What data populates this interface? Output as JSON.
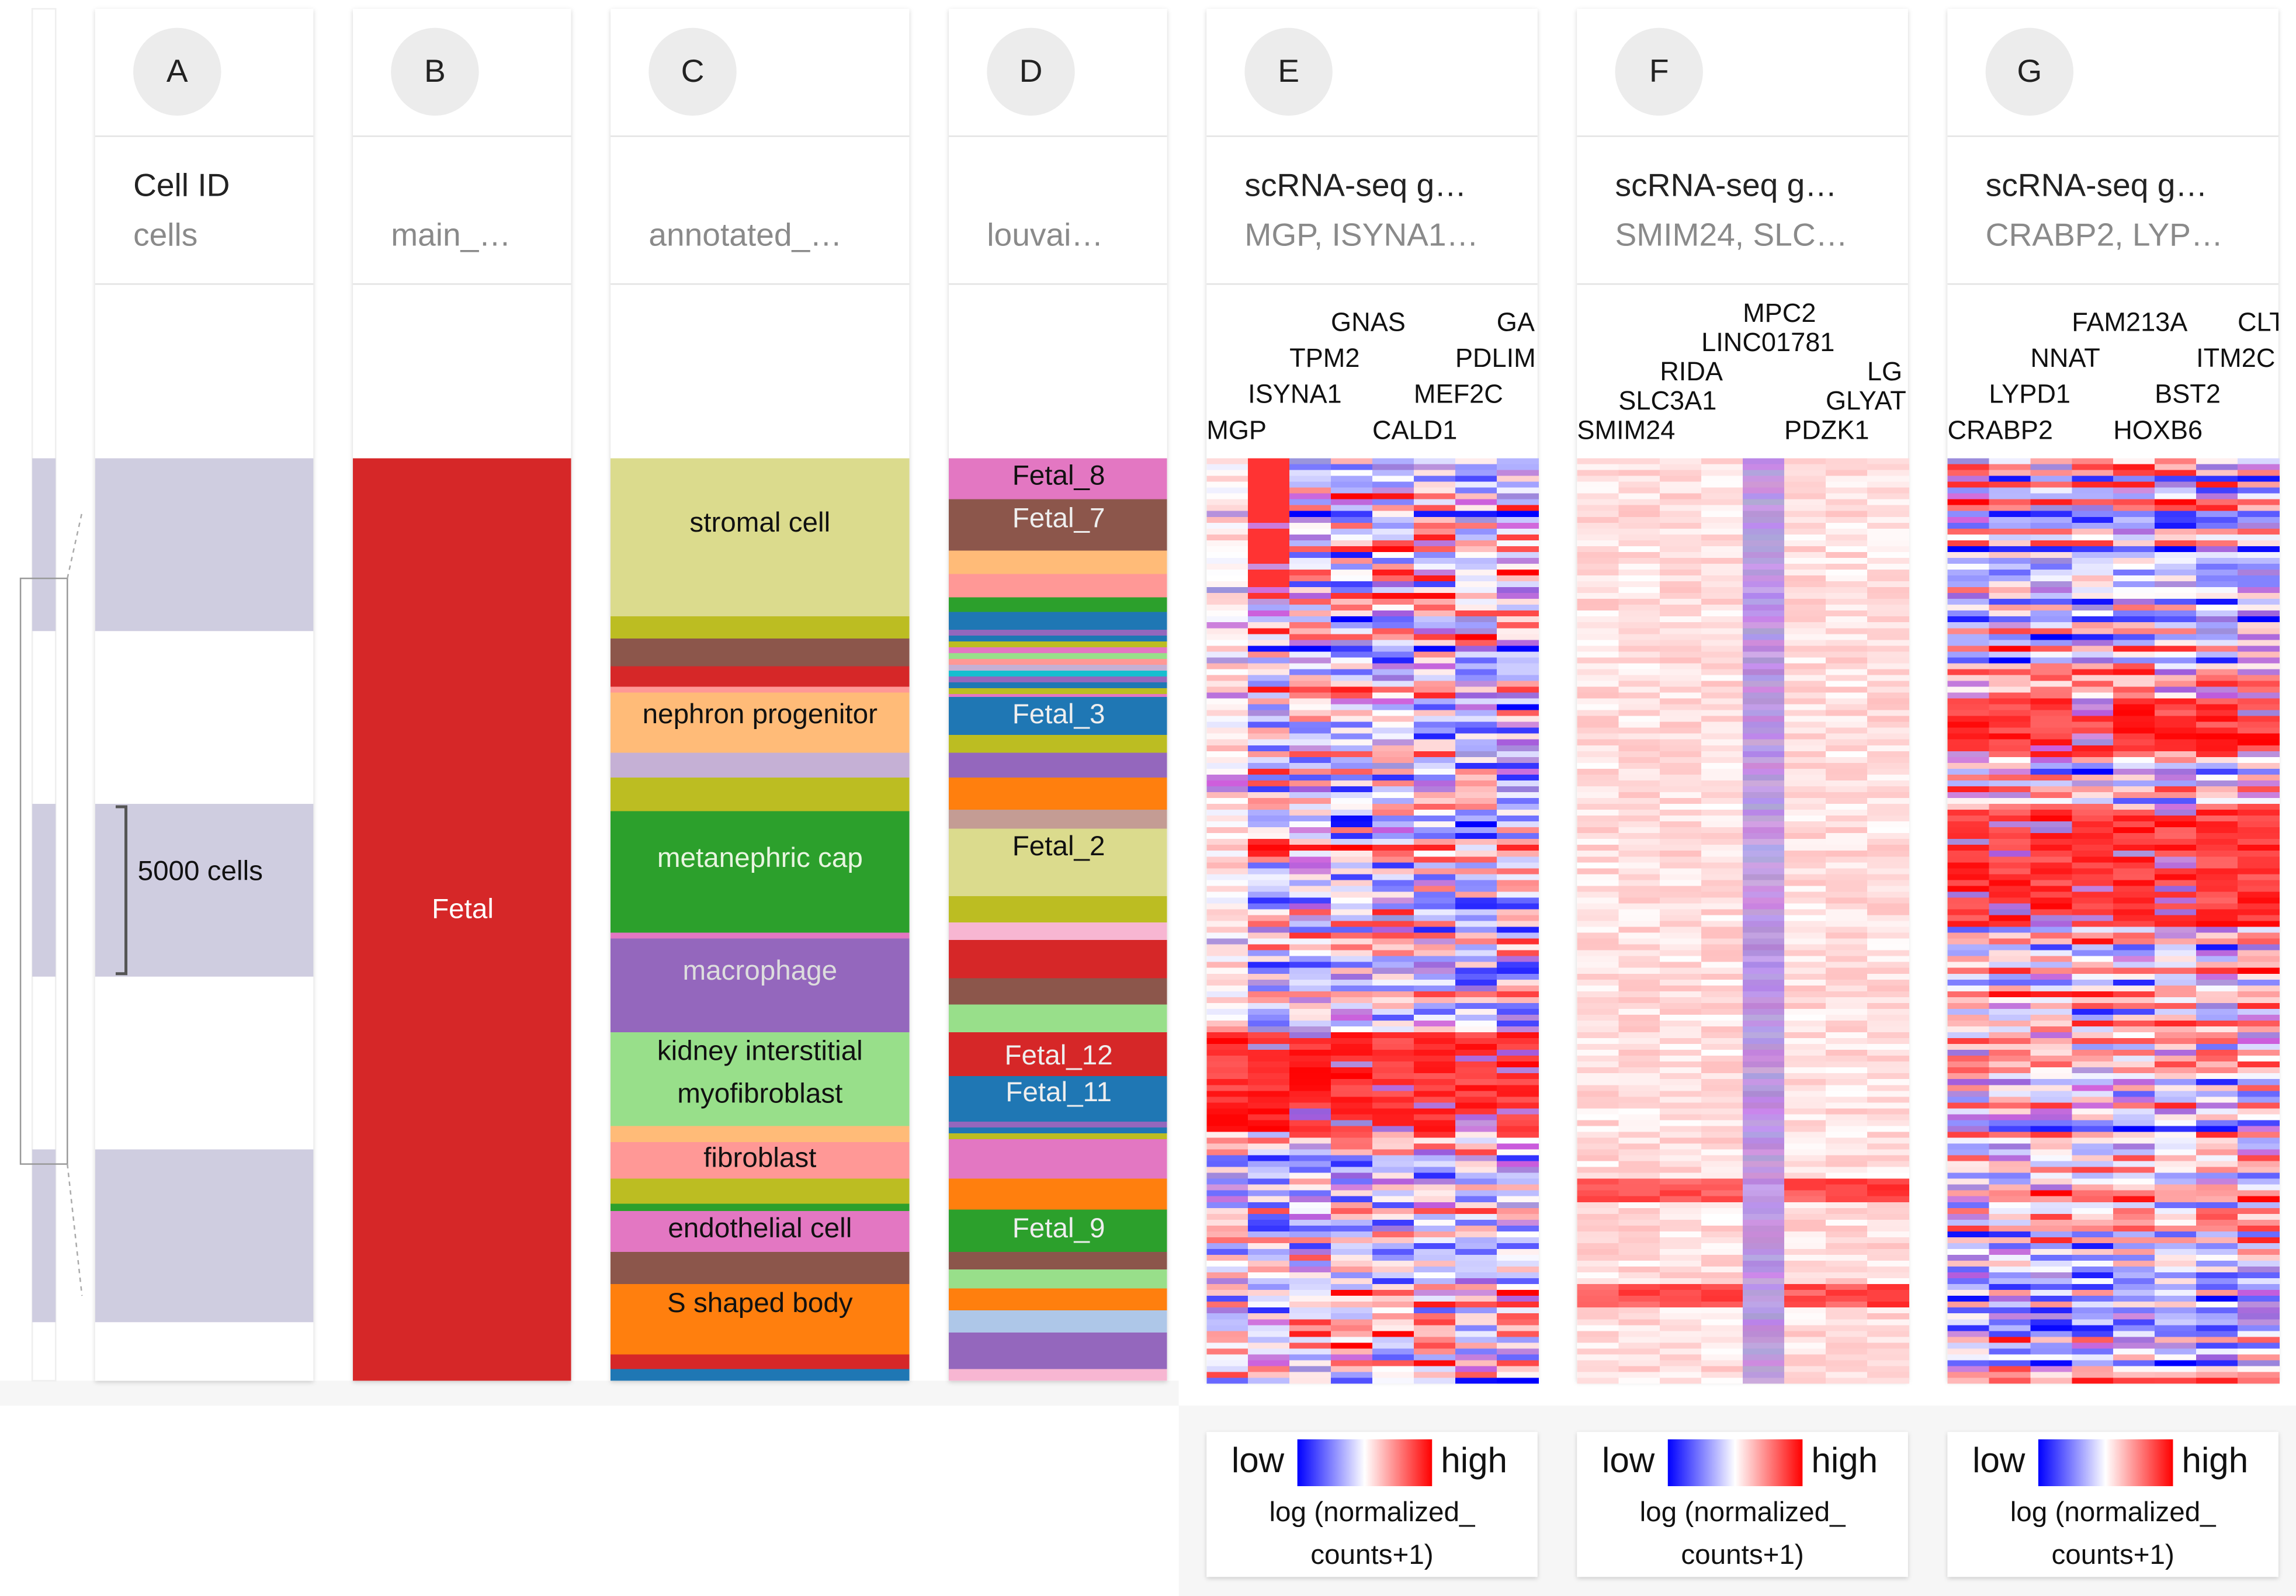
{
  "columns": [
    {
      "letter": "A",
      "title": "Cell ID",
      "subtitle": "cells",
      "labels": [
        "5000 cells"
      ]
    },
    {
      "letter": "B",
      "subtitle": "main_…",
      "labels": [
        "Fetal"
      ]
    },
    {
      "letter": "C",
      "subtitle": "annotated_…",
      "labels": [
        "stromal cell",
        "nephron progenitor",
        "metanephric cap",
        "macrophage",
        "kidney interstitial",
        "myofibroblast",
        "fibroblast",
        "endothelial cell",
        "S shaped body"
      ]
    },
    {
      "letter": "D",
      "subtitle": "louvai…",
      "labels": [
        "Fetal_8",
        "Fetal_7",
        "Fetal_3",
        "Fetal_2",
        "Fetal_12",
        "Fetal_11",
        "Fetal_9"
      ]
    },
    {
      "letter": "E",
      "title": "scRNA-seq g…",
      "subtitle": "MGP, ISYNA1…",
      "genes": [
        "MGP",
        "ISYNA1",
        "TPM2",
        "GNAS",
        "CALD1",
        "MEF2C",
        "PDLIM",
        "GA"
      ]
    },
    {
      "letter": "F",
      "title": "scRNA-seq g…",
      "subtitle": "SMIM24, SLC…",
      "genes": [
        "SMIM24",
        "SLC3A1",
        "RIDA",
        "LINC01781",
        "MPC2",
        "PDZK1",
        "GLYAT",
        "LG"
      ]
    },
    {
      "letter": "G",
      "title": "scRNA-seq g…",
      "subtitle": "CRABP2, LYP…",
      "genes": [
        "CRABP2",
        "LYPD1",
        "NNAT",
        "FAM213A",
        "HOXB6",
        "BST2",
        "ITM2C",
        "CLT"
      ]
    }
  ],
  "legend": {
    "low": "low",
    "high": "high",
    "caption": [
      "log (normalized_",
      "counts+1)"
    ]
  }
}
